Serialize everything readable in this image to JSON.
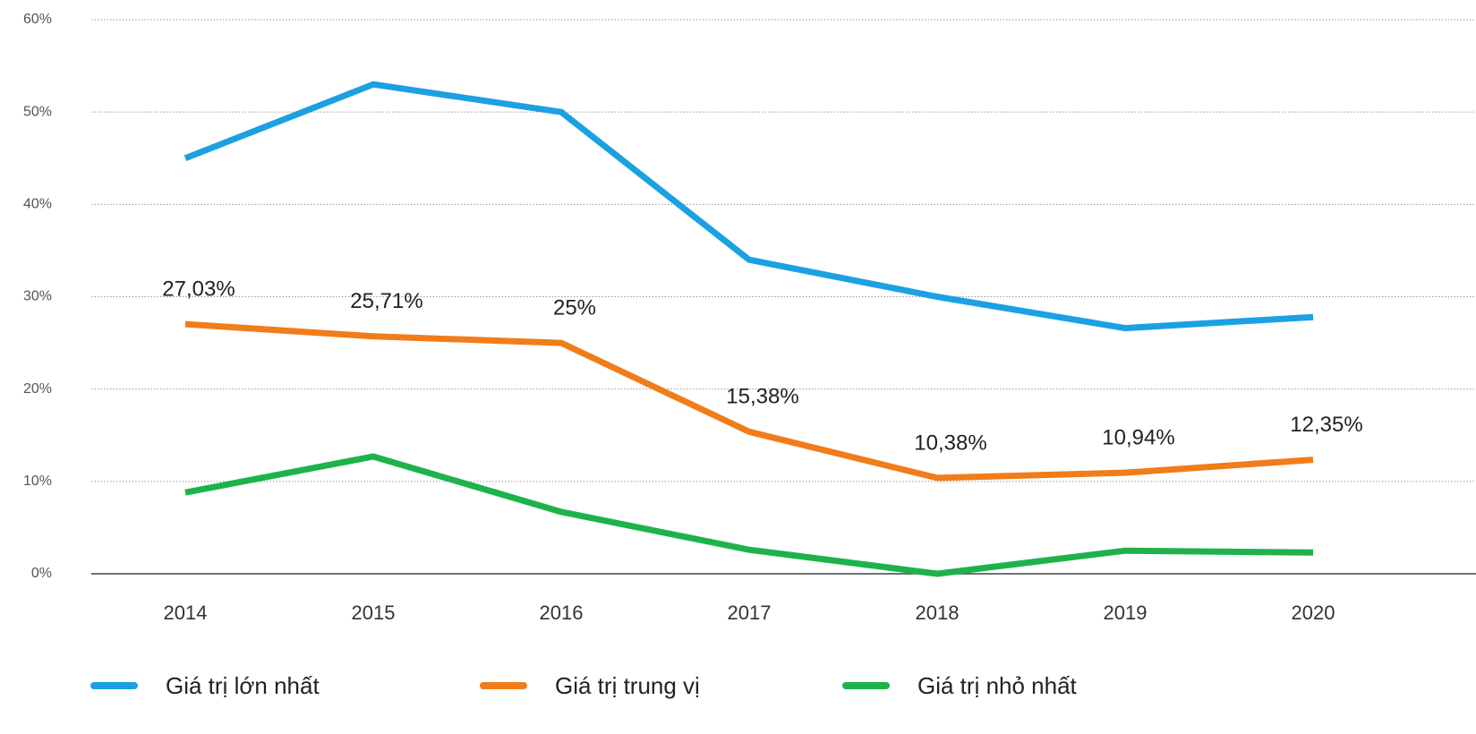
{
  "chart_data": {
    "type": "line",
    "x": [
      "2014",
      "2015",
      "2016",
      "2017",
      "2018",
      "2019",
      "2020"
    ],
    "series": [
      {
        "name": "Giá trị lớn nhất",
        "color": "#1ba1e2",
        "values": [
          45,
          53,
          50,
          34,
          30,
          26.6,
          27.8
        ]
      },
      {
        "name": "Giá trị trung vị",
        "color": "#f07d1a",
        "values": [
          27.03,
          25.71,
          25,
          15.38,
          10.38,
          10.94,
          12.35
        ],
        "value_labels": [
          "27,03%",
          "25,71%",
          "25%",
          "15,38%",
          "10,38%",
          "10,94%",
          "12,35%"
        ]
      },
      {
        "name": "Giá trị nhỏ nhất",
        "color": "#1db34a",
        "values": [
          8.8,
          12.7,
          6.7,
          2.6,
          0,
          2.5,
          2.3
        ]
      }
    ],
    "ylim": [
      0,
      60
    ],
    "yticks": [
      {
        "value": 0,
        "label": "0%"
      },
      {
        "value": 10,
        "label": "10%"
      },
      {
        "value": 20,
        "label": "20%"
      },
      {
        "value": 30,
        "label": "30%"
      },
      {
        "value": 40,
        "label": "40%"
      },
      {
        "value": 50,
        "label": "50%"
      },
      {
        "value": 60,
        "label": "60%"
      }
    ],
    "grid": true,
    "legend": "bottom"
  }
}
